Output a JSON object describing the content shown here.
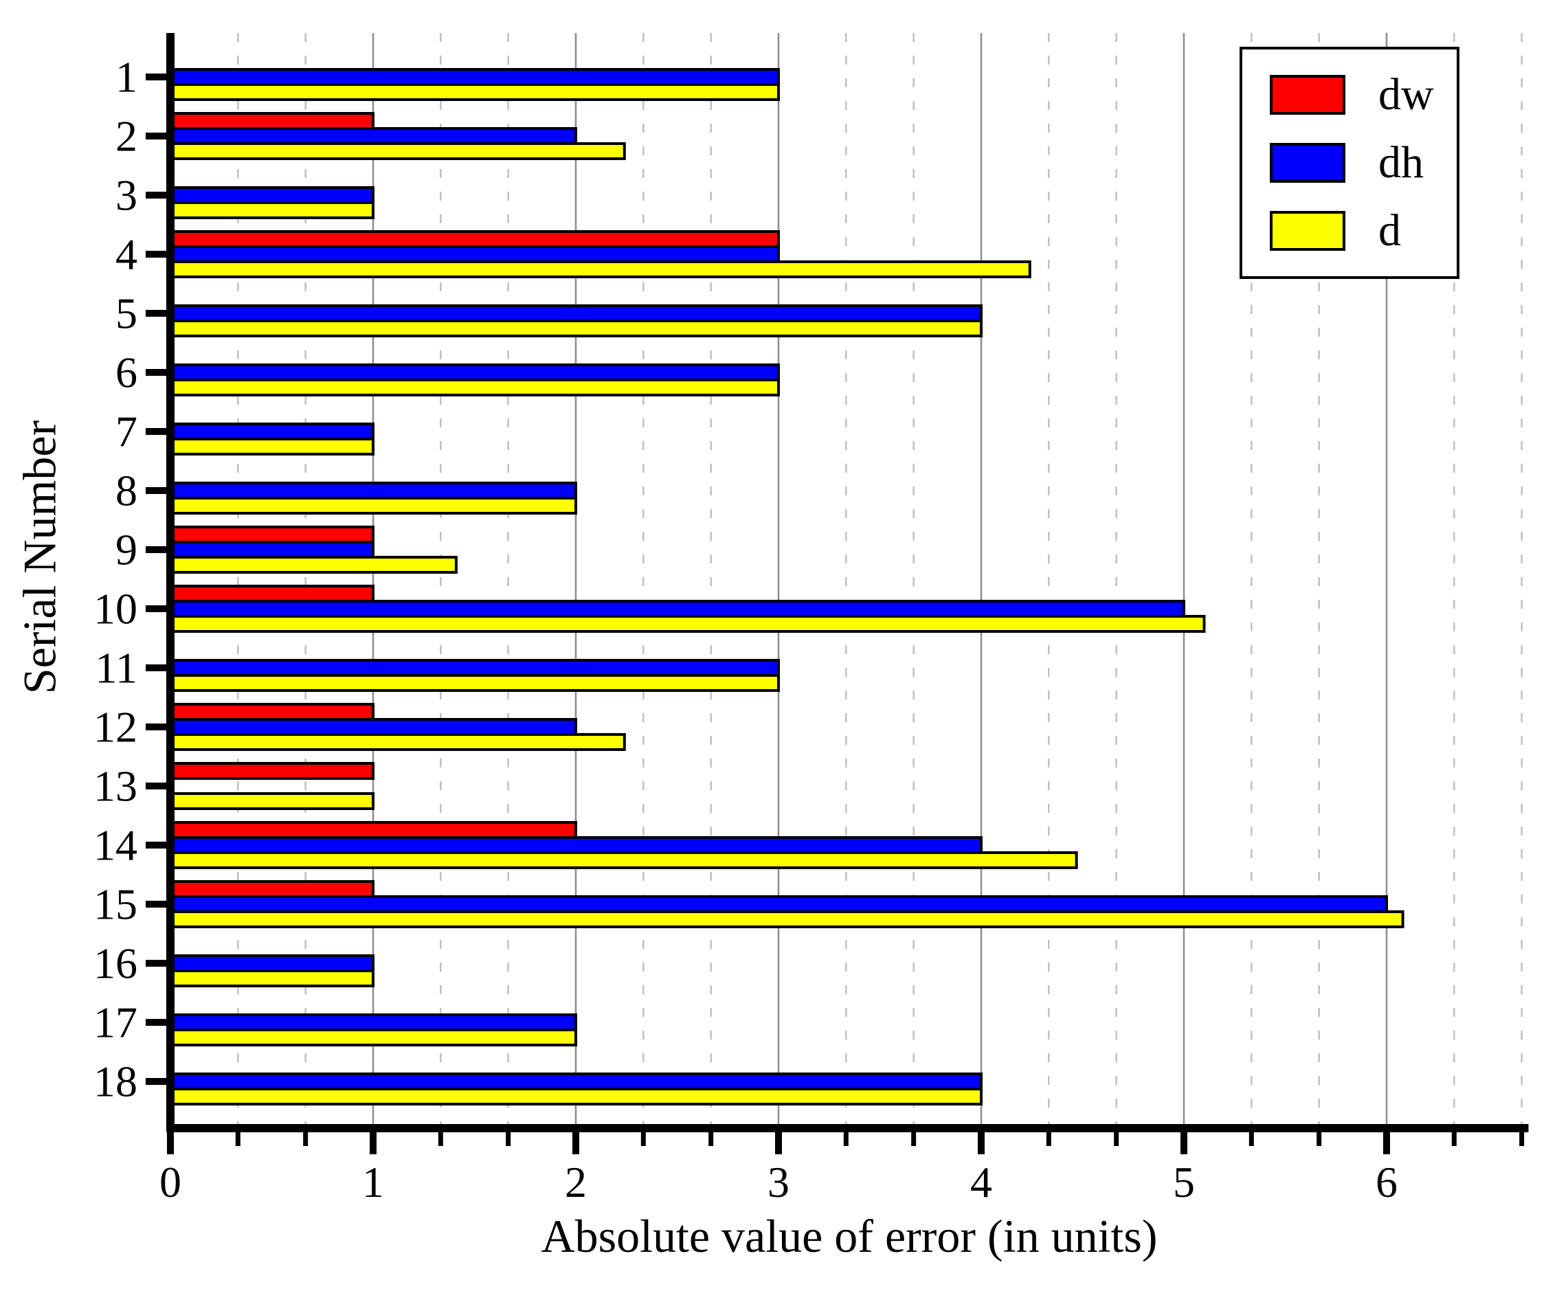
{
  "chart_data": {
    "type": "bar",
    "orientation": "horizontal",
    "title": "",
    "xlabel": "Absolute value of error (in units)",
    "ylabel": "Serial Number",
    "categories": [
      "1",
      "2",
      "3",
      "4",
      "5",
      "6",
      "7",
      "8",
      "9",
      "10",
      "11",
      "12",
      "13",
      "14",
      "15",
      "16",
      "17",
      "18"
    ],
    "series": [
      {
        "name": "dw",
        "color": "#ff0000",
        "values": [
          0,
          1,
          0,
          3,
          0,
          0,
          0,
          0,
          1,
          1,
          0,
          1,
          1,
          2,
          1,
          0,
          0,
          0
        ]
      },
      {
        "name": "dh",
        "color": "#0000ff",
        "values": [
          3,
          2,
          1,
          3,
          4,
          3,
          1,
          2,
          1,
          5,
          3,
          2,
          0,
          4,
          6,
          1,
          2,
          4
        ]
      },
      {
        "name": "d",
        "color": "#ffff00",
        "values": [
          3,
          2.24,
          1,
          4.24,
          4,
          3,
          1,
          2,
          1.41,
          5.1,
          3,
          2.24,
          1,
          4.47,
          6.08,
          1,
          2,
          4
        ]
      }
    ],
    "x_ticks": [
      0,
      1,
      2,
      3,
      4,
      5,
      6
    ],
    "xlim": [
      0,
      6.7
    ],
    "minor_tick_step": 0.333,
    "grid": {
      "major": "solid gray at integers",
      "minor": "dashed light gray at thirds",
      "horizontal": "off"
    },
    "legend_position": "top-right",
    "bar_outline_color": "#000000"
  }
}
